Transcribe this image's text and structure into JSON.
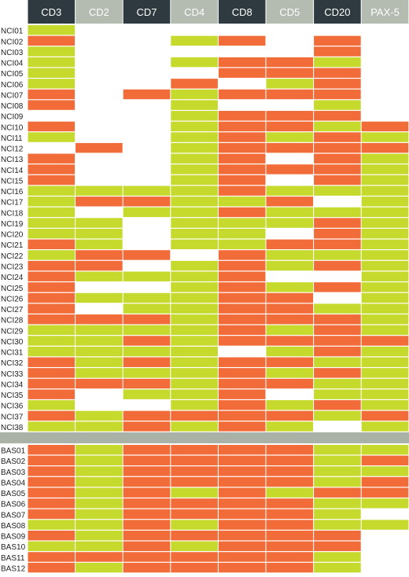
{
  "colors": {
    "positive": "#f26c3a",
    "negative": "#c6d92d",
    "empty": "#ffffff",
    "header_dark": "#2f3a40",
    "header_light": "#b4bbb0",
    "separator": "#aab1a7",
    "label_text": "#222222",
    "header_text": "#ffffff"
  },
  "legend_note": "",
  "chart_data": {
    "type": "heatmap",
    "markers": [
      "CD3",
      "CD2",
      "CD7",
      "CD4",
      "CD8",
      "CD5",
      "CD20",
      "PAX-5"
    ],
    "header_styles": [
      "dark",
      "light",
      "dark",
      "light",
      "dark",
      "light",
      "dark",
      "light"
    ],
    "value_codes": {
      "O": "orange",
      "G": "green",
      "W": "blank"
    },
    "groups": [
      {
        "rows": [
          {
            "label": "NCI01",
            "cells": "GWWWWWWW"
          },
          {
            "label": "NCI02",
            "cells": "OWWGOWOW"
          },
          {
            "label": "NCI03",
            "cells": "GWWWWWOW"
          },
          {
            "label": "NCI04",
            "cells": "GWWGOOGW"
          },
          {
            "label": "NCI05",
            "cells": "GWWWOOOW"
          },
          {
            "label": "NCI06",
            "cells": "GWWOWGOW"
          },
          {
            "label": "NCI07",
            "cells": "OWOGOOOW"
          },
          {
            "label": "NCI08",
            "cells": "OWWGWWGW"
          },
          {
            "label": "NCI09",
            "cells": "WWWGOOOW"
          },
          {
            "label": "NCI10",
            "cells": "OWWGOOGO"
          },
          {
            "label": "NCI11",
            "cells": "GWWGOGOG"
          },
          {
            "label": "NCI12",
            "cells": "WOWGOOOO"
          },
          {
            "label": "NCI13",
            "cells": "OWWGOWOG"
          },
          {
            "label": "NCI14",
            "cells": "OWWGOOOG"
          },
          {
            "label": "NCI15",
            "cells": "OWWGOWOG"
          },
          {
            "label": "NCI16",
            "cells": "GGGGOGGG"
          },
          {
            "label": "NCI17",
            "cells": "GOOGGOWG"
          },
          {
            "label": "NCI18",
            "cells": "GWGGOGGG"
          },
          {
            "label": "NCI19",
            "cells": "GGWGGGOG"
          },
          {
            "label": "NCI20",
            "cells": "GGWGGWOG"
          },
          {
            "label": "NCI21",
            "cells": "OGWGGOOG"
          },
          {
            "label": "NCI22",
            "cells": "GOOWOGGG"
          },
          {
            "label": "NCI23",
            "cells": "OOWGOGOG"
          },
          {
            "label": "NCI24",
            "cells": "OGGGOWWG"
          },
          {
            "label": "NCI25",
            "cells": "OWWGOGOG"
          },
          {
            "label": "NCI26",
            "cells": "OGGGOOWG"
          },
          {
            "label": "NCI27",
            "cells": "OWGGOOGG"
          },
          {
            "label": "NCI28",
            "cells": "OOOGOOOG"
          },
          {
            "label": "NCI29",
            "cells": "GGGGOGOG"
          },
          {
            "label": "NCI30",
            "cells": "GGOGOOOO"
          },
          {
            "label": "NCI31",
            "cells": "GGGGWGOG"
          },
          {
            "label": "NCI32",
            "cells": "OGOGOOGG"
          },
          {
            "label": "NCI33",
            "cells": "OGGGOGOG"
          },
          {
            "label": "NCI34",
            "cells": "OOOGOOGG"
          },
          {
            "label": "NCI35",
            "cells": "OWGGOWGG"
          },
          {
            "label": "NCI36",
            "cells": "GWWGOGOG"
          },
          {
            "label": "NCI37",
            "cells": "OGOOOOGO"
          },
          {
            "label": "NCI38",
            "cells": "GGOGOGWG"
          }
        ]
      },
      {
        "rows": [
          {
            "label": "BAS01",
            "cells": "OGOOOOGG"
          },
          {
            "label": "BAS02",
            "cells": "OGOOOOGO"
          },
          {
            "label": "BAS03",
            "cells": "OGOOOOGG"
          },
          {
            "label": "BAS04",
            "cells": "OGOOOOGO"
          },
          {
            "label": "BAS05",
            "cells": "OGOGOGOO"
          },
          {
            "label": "BAS06",
            "cells": "OGOOOOGG"
          },
          {
            "label": "BAS07",
            "cells": "OGOOOOGW"
          },
          {
            "label": "BAS08",
            "cells": "GGOGOOGG"
          },
          {
            "label": "BAS09",
            "cells": "OGOOOOOW"
          },
          {
            "label": "BAS10",
            "cells": "GGOGOOOW"
          },
          {
            "label": "BAS11",
            "cells": "OOOOOOGW"
          },
          {
            "label": "BAS12",
            "cells": "OGOOOOGW"
          }
        ]
      }
    ]
  }
}
